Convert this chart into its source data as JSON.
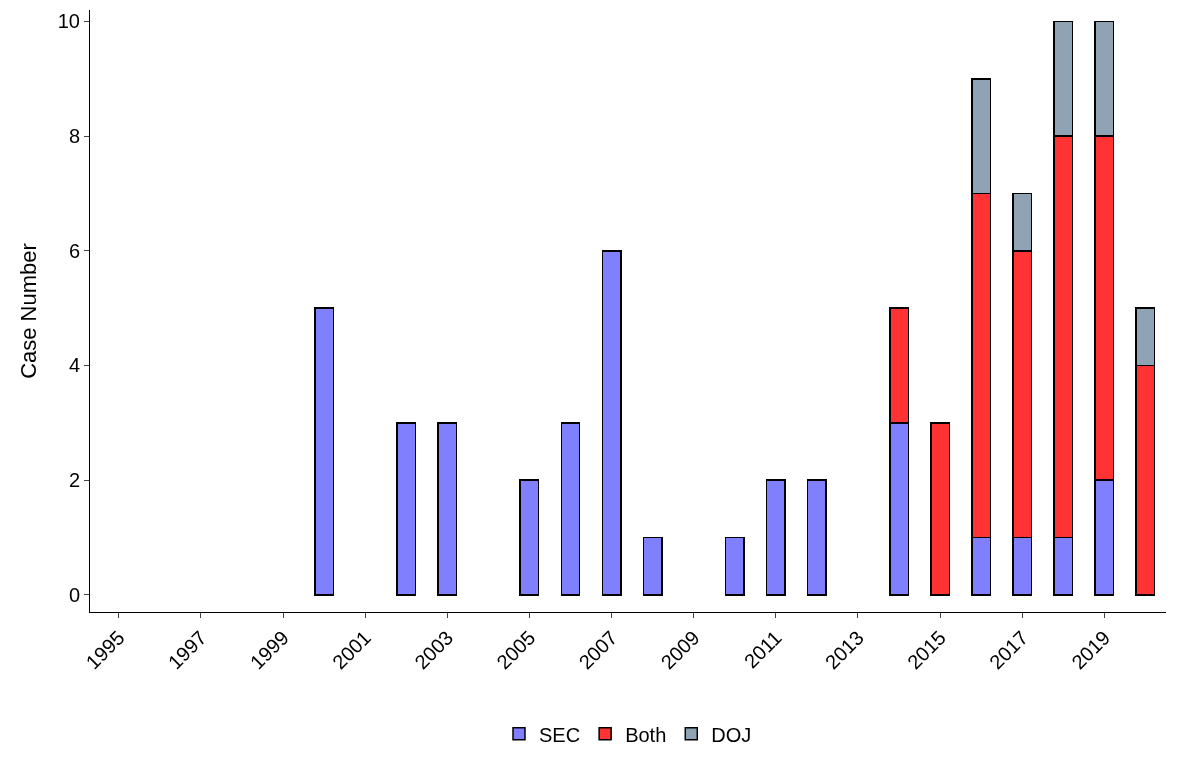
{
  "chart_data": {
    "type": "bar",
    "stacked": true,
    "ylabel": "Case Number",
    "categories": [
      "1995",
      null,
      "1997",
      null,
      "1999",
      null,
      "2001",
      null,
      "2003",
      null,
      "2005",
      null,
      "2007",
      null,
      "2009",
      null,
      "2011",
      null,
      "2013",
      null,
      "2015",
      null,
      "2017",
      null,
      "2019",
      null
    ],
    "series": [
      {
        "name": "SEC",
        "color": "#8080ff",
        "values": [
          null,
          null,
          null,
          null,
          null,
          5,
          null,
          3,
          3,
          null,
          2,
          3,
          6,
          1,
          null,
          1,
          2,
          2,
          null,
          3,
          null,
          1,
          1,
          1,
          2,
          null
        ]
      },
      {
        "name": "Both",
        "color": "#ff3333",
        "values": [
          null,
          null,
          null,
          null,
          null,
          null,
          null,
          null,
          null,
          null,
          null,
          null,
          null,
          null,
          null,
          null,
          null,
          null,
          null,
          2,
          3,
          6,
          5,
          7,
          6,
          4
        ]
      },
      {
        "name": "DOJ",
        "color": "#8fa3b5",
        "values": [
          null,
          null,
          null,
          null,
          null,
          null,
          null,
          null,
          null,
          null,
          null,
          null,
          null,
          null,
          null,
          null,
          null,
          null,
          null,
          null,
          null,
          2,
          1,
          2,
          2,
          1
        ]
      }
    ],
    "ylim": [
      -0.3,
      10.2
    ],
    "yticks": [
      0,
      2,
      4,
      6,
      8,
      10
    ],
    "legend": "bottom"
  }
}
